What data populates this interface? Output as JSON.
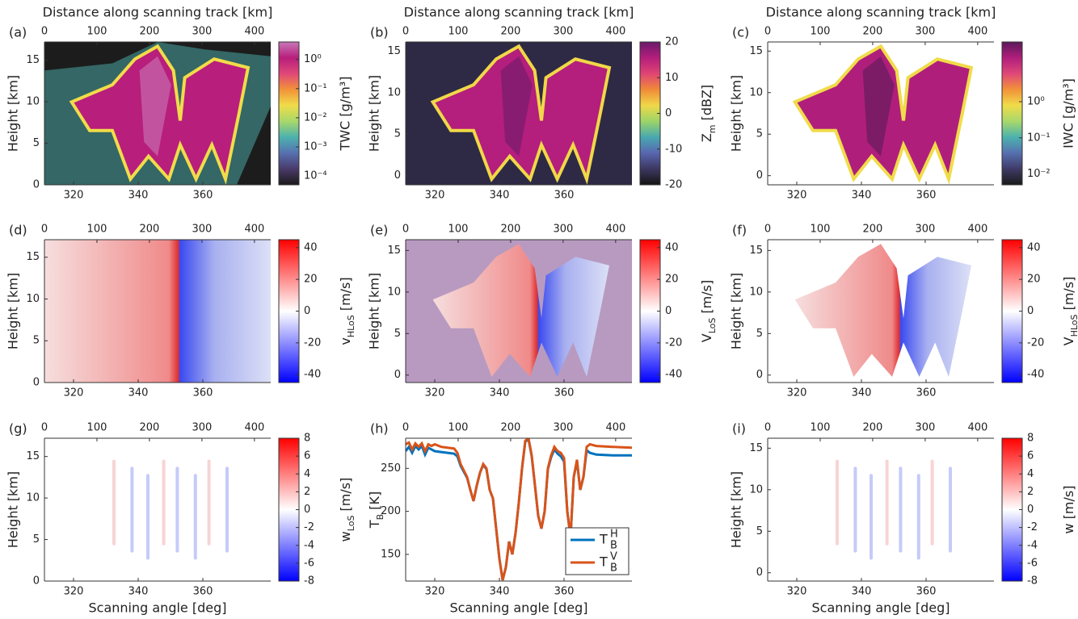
{
  "chart_data": [
    {
      "type": "heatmap",
      "label": "(a)",
      "title": "Distance along scanning track [km]",
      "ylabel": "Height [km]",
      "xlim": [
        311,
        381
      ],
      "xticks": [
        320,
        340,
        360
      ],
      "x2lim": [
        0,
        431
      ],
      "x2ticks": [
        0,
        100,
        200,
        300,
        400
      ],
      "ylim": [
        0,
        17.2
      ],
      "yticks": [
        0,
        5,
        10,
        15
      ],
      "background": "#1c1c1c",
      "colorbar": {
        "label": "TWC [g/m³]",
        "log": true,
        "lim": [
          5e-05,
          4
        ],
        "ticks": [
          {
            "value": 1,
            "label": "10⁰"
          },
          {
            "value": 0.1,
            "label": "10⁻¹"
          },
          {
            "value": 0.01,
            "label": "10⁻²"
          },
          {
            "value": 0.001,
            "label": "10⁻³"
          },
          {
            "value": 0.0001,
            "label": "10⁻⁴"
          }
        ],
        "colors": [
          "#1a1a1a",
          "#4a3a6a",
          "#5670b0",
          "#4cb2ae",
          "#a8d86a",
          "#f0dc4a",
          "#f29238",
          "#e04878",
          "#b81e7c",
          "#c878b8"
        ]
      }
    },
    {
      "type": "heatmap",
      "label": "(b)",
      "title": "Distance along scanning track [km]",
      "ylabel": "Height [km]",
      "xlim": [
        311,
        381
      ],
      "xticks": [
        320,
        340,
        360
      ],
      "x2lim": [
        0,
        431
      ],
      "x2ticks": [
        0,
        100,
        200,
        300,
        400
      ],
      "ylim": [
        -1.1,
        16.1
      ],
      "yticks": [
        0,
        5,
        10,
        15
      ],
      "background": "#2e2a45",
      "colorbar": {
        "label": [
          "Z",
          {
            "sub": "m"
          },
          " [dBZ]"
        ],
        "log": false,
        "lim": [
          -20,
          20
        ],
        "ticks": [
          -20,
          -10,
          0,
          10,
          20
        ],
        "colors": [
          "#141414",
          "#3c3760",
          "#5866b0",
          "#48a8b0",
          "#9cd468",
          "#f0d848",
          "#f08a38",
          "#e04474",
          "#b41e7c",
          "#6a1a6a"
        ]
      }
    },
    {
      "type": "heatmap",
      "label": "(c)",
      "title": "Distance along scanning track [km]",
      "ylabel": "Height [km]",
      "xlim": [
        311,
        381
      ],
      "xticks": [
        320,
        340,
        360
      ],
      "x2lim": [
        0,
        431
      ],
      "x2ticks": [
        0,
        100,
        200,
        300,
        400
      ],
      "ylim": [
        -1.1,
        16.1
      ],
      "yticks": [
        0,
        5,
        10,
        15
      ],
      "background": "#ffffff",
      "colorbar": {
        "label": "IWC [g/m³]",
        "log": true,
        "lim": [
          0.005,
          45
        ],
        "ticks": [
          {
            "value": 1,
            "label": "10⁰"
          },
          {
            "value": 0.1,
            "label": "10⁻¹"
          },
          {
            "value": 0.01,
            "label": "10⁻²"
          }
        ],
        "colors": [
          "#1a1a1a",
          "#3e3a66",
          "#5670b0",
          "#4cb2ae",
          "#a8d86a",
          "#f0dc4a",
          "#f29238",
          "#e04878",
          "#b01e7c",
          "#5a1a5a"
        ]
      }
    },
    {
      "type": "heatmap",
      "label": "(d)",
      "ylabel": "Height [km]",
      "xlim": [
        311,
        381
      ],
      "xticks": [
        320,
        340,
        360
      ],
      "x2lim": [
        0,
        431
      ],
      "x2ticks": [
        0,
        100,
        200,
        300,
        400
      ],
      "ylim": [
        0,
        17.1
      ],
      "yticks": [
        0,
        5,
        10,
        15
      ],
      "background": "#f4e8ec",
      "colorbar": {
        "label": [
          "v",
          {
            "sub": "HLoS"
          },
          " [m/s]"
        ],
        "log": false,
        "lim": [
          -45,
          45
        ],
        "ticks": [
          -40,
          -20,
          0,
          20,
          40
        ],
        "colors": [
          "#0000ff",
          "#ffffff",
          "#ff0000"
        ]
      }
    },
    {
      "type": "heatmap",
      "label": "(e)",
      "ylabel": "Height [km]",
      "xlim": [
        311,
        381
      ],
      "xticks": [
        320,
        340,
        360
      ],
      "x2lim": [
        0,
        431
      ],
      "x2ticks": [
        0,
        100,
        200,
        300,
        400
      ],
      "ylim": [
        -0.9,
        16.3
      ],
      "yticks": [
        0,
        5,
        10,
        15
      ],
      "background": "#b89ac0",
      "colorbar": {
        "label": [
          "V",
          {
            "sub": "LoS"
          },
          " [m/s]"
        ],
        "log": false,
        "lim": [
          -45,
          45
        ],
        "ticks": [
          -40,
          -20,
          0,
          20,
          40
        ],
        "colors": [
          "#0000ff",
          "#ffffff",
          "#ff0000"
        ]
      }
    },
    {
      "type": "heatmap",
      "label": "(f)",
      "ylabel": "Height [km]",
      "xlim": [
        311,
        381
      ],
      "xticks": [
        320,
        340,
        360
      ],
      "x2lim": [
        0,
        431
      ],
      "x2ticks": [
        0,
        100,
        200,
        300,
        400
      ],
      "ylim": [
        -0.9,
        16.3
      ],
      "yticks": [
        0,
        5,
        10,
        15
      ],
      "background": "#ffffff",
      "colorbar": {
        "label": [
          "V",
          {
            "sub": "HLoS"
          },
          " [m/s]"
        ],
        "log": false,
        "lim": [
          -45,
          45
        ],
        "ticks": [
          -40,
          -20,
          0,
          20,
          40
        ],
        "colors": [
          "#0000ff",
          "#ffffff",
          "#ff0000"
        ]
      }
    },
    {
      "type": "heatmap",
      "label": "(g)",
      "ylabel": "Height [km]",
      "xlabel": "Scanning angle [deg]",
      "xlim": [
        311,
        381
      ],
      "xticks": [
        320,
        340,
        360
      ],
      "x2lim": [
        0,
        431
      ],
      "x2ticks": [
        0,
        100,
        200,
        300,
        400
      ],
      "ylim": [
        0,
        17.2
      ],
      "yticks": [
        0,
        5,
        10,
        15
      ],
      "background": "#ffffff",
      "colorbar": {
        "label": [
          "w",
          {
            "sub": "LoS"
          },
          " [m/s]"
        ],
        "log": false,
        "lim": [
          -8,
          8
        ],
        "ticks": [
          -8,
          -6,
          -4,
          -2,
          0,
          2,
          4,
          6,
          8
        ],
        "colors": [
          "#0000ff",
          "#ffffff",
          "#ff0000"
        ]
      }
    },
    {
      "type": "line",
      "label": "(h)",
      "ylabel": [
        "T",
        {
          "sub": "B"
        },
        " [K]"
      ],
      "xlabel": "Scanning angle [deg]",
      "xlim": [
        311,
        381
      ],
      "xticks": [
        320,
        340,
        360
      ],
      "x2lim": [
        0,
        431
      ],
      "x2ticks": [
        0,
        100,
        200,
        300,
        400
      ],
      "ylim": [
        119,
        285
      ],
      "yticks": [
        150,
        200,
        250
      ],
      "legend": "lower right",
      "x": [
        311,
        312,
        313,
        314,
        315,
        316,
        317,
        318,
        319,
        320,
        322,
        324,
        326,
        327,
        328,
        330,
        331,
        332,
        333,
        334,
        335,
        336,
        337,
        338,
        339,
        340,
        341,
        342,
        343,
        344,
        345,
        346,
        347,
        348,
        349,
        350,
        351,
        352,
        353,
        354,
        355,
        356,
        357,
        358,
        359,
        360,
        361,
        362,
        363,
        364,
        365,
        366,
        367,
        368,
        370,
        375,
        381
      ],
      "series": [
        {
          "name": "T",
          "sub": "B",
          "sup": "H",
          "color": "#0072bd",
          "values": [
            270,
            275,
            268,
            276,
            272,
            276,
            266,
            274,
            272,
            270,
            269,
            268,
            267,
            264,
            253,
            239,
            225,
            212,
            230,
            245,
            254,
            249,
            225,
            215,
            180,
            145,
            120,
            135,
            165,
            150,
            175,
            210,
            250,
            281,
            284,
            264,
            230,
            195,
            180,
            200,
            249,
            263,
            272,
            267,
            264,
            258,
            200,
            170,
            240,
            258,
            225,
            240,
            271,
            268,
            266,
            265,
            265
          ]
        },
        {
          "name": "T",
          "sub": "B",
          "sup": "V",
          "color": "#d95319",
          "values": [
            278,
            280,
            272,
            279,
            275,
            279,
            270,
            278,
            276,
            278,
            275,
            274,
            273,
            268,
            255,
            240,
            225,
            212,
            230,
            245,
            255,
            250,
            225,
            215,
            180,
            145,
            120,
            135,
            165,
            150,
            175,
            210,
            250,
            282,
            285,
            265,
            230,
            195,
            180,
            200,
            250,
            265,
            275,
            270,
            268,
            262,
            200,
            170,
            240,
            260,
            225,
            240,
            275,
            278,
            276,
            275,
            274
          ]
        }
      ]
    },
    {
      "type": "heatmap",
      "label": "(i)",
      "ylabel": "Height [km]",
      "xlabel": "Scanning angle [deg]",
      "xlim": [
        311,
        381
      ],
      "xticks": [
        320,
        340,
        360
      ],
      "x2lim": [
        0,
        431
      ],
      "x2ticks": [
        0,
        100,
        200,
        300,
        400
      ],
      "ylim": [
        -1,
        16.2
      ],
      "yticks": [
        0,
        5,
        10,
        15
      ],
      "background": "#ffffff",
      "colorbar": {
        "label": [
          "w",
          " [m/s]"
        ],
        "log": false,
        "lim": [
          -8,
          8
        ],
        "ticks": [
          -8,
          -6,
          -4,
          -2,
          0,
          2,
          4,
          6,
          8
        ],
        "colors": [
          "#0000ff",
          "#ffffff",
          "#ff0000"
        ]
      }
    }
  ]
}
